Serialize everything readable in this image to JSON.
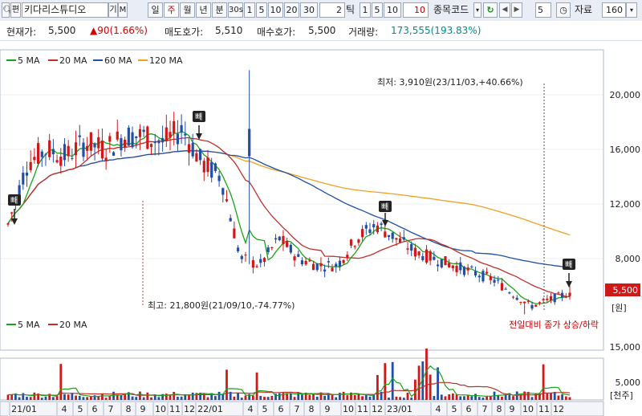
{
  "toolbar": {
    "search_icon": "magnifier-icon",
    "stock_name": "키다리스튜디오",
    "chart_type_labels": [
      "일",
      "주",
      "월",
      "년"
    ],
    "selected_period": "주",
    "seconds_label": "분",
    "sec_30": "30s",
    "minute_buttons": [
      "1",
      "5",
      "10",
      "20",
      "30"
    ],
    "tick_value": "2",
    "tick_label": "틱",
    "tick_buttons": [
      "1",
      "5",
      "10"
    ],
    "tick_red_value": "10",
    "code_label": "종목코드",
    "code_value": "5",
    "data_label": "자료",
    "data_count": "160",
    "abbr_1": "편",
    "abbr_2": "기",
    "abbr_3": "M"
  },
  "info_bar": {
    "current_price_label": "현재가:",
    "current_price": "5,500",
    "change_text": "▲90(1.66%)",
    "ask_label": "매도호가:",
    "ask_price": "5,510",
    "bid_label": "매수호가:",
    "bid_price": "5,500",
    "volume_label": "거래량:",
    "volume": "173,555(193.83%)"
  },
  "price_chart": {
    "legend": [
      {
        "label": "5 MA",
        "color": "#1aa31a"
      },
      {
        "label": "20 MA",
        "color": "#c0302a"
      },
      {
        "label": "60 MA",
        "color": "#1f4fa8"
      },
      {
        "label": "120 MA",
        "color": "#f0a020"
      }
    ],
    "annotation_low": "최저: 3,910원(23/11/03,+40.66%)",
    "annotation_high": "최고: 21,800원(21/09/10,-74.77%)",
    "y_ticks": [
      "20,000",
      "16,000",
      "12,000",
      "8,000"
    ],
    "current_price_tag": "5,500",
    "unit": "[원]",
    "marker_label": "빼"
  },
  "volume_chart": {
    "legend": [
      {
        "label": "5 MA",
        "color": "#1aa31a"
      },
      {
        "label": "20 MA",
        "color": "#c0302a"
      }
    ],
    "note": "전일대비 종가 상승/하락",
    "y_ticks": [
      "15,000",
      "5,000"
    ],
    "unit": "[천주]"
  },
  "x_axis": {
    "labels": [
      "21/01",
      "4",
      "5",
      "6",
      "7",
      "8",
      "9",
      "10",
      "11",
      "12",
      "22/01",
      "4",
      "5",
      "6",
      "7",
      "8",
      "9",
      "10",
      "11",
      "12",
      "23/01",
      "4",
      "5",
      "6",
      "7",
      "8",
      "9",
      "10",
      "11",
      "12"
    ]
  },
  "chart_data": {
    "type": "candlestick",
    "period": "weekly",
    "x": [
      "21/01",
      "21/04",
      "21/05",
      "21/06",
      "21/07",
      "21/08",
      "21/09",
      "21/10",
      "21/11",
      "21/12",
      "22/01",
      "22/04",
      "22/05",
      "22/06",
      "22/07",
      "22/08",
      "22/09",
      "22/10",
      "22/11",
      "22/12",
      "23/01",
      "23/04",
      "23/05",
      "23/06",
      "23/07",
      "23/08",
      "23/09",
      "23/10",
      "23/11",
      "23/12"
    ],
    "close_approx": [
      10500,
      15000,
      16000,
      15500,
      16500,
      16000,
      17000,
      17000,
      16500,
      17500,
      15000,
      14000,
      8000,
      7500,
      9500,
      8000,
      7500,
      7500,
      9500,
      10500,
      9500,
      8500,
      8000,
      7500,
      7000,
      6500,
      5500,
      4500,
      5000,
      5500
    ],
    "ylim": [
      3000,
      22500
    ],
    "max": {
      "value": 21800,
      "date": "21/09/10"
    },
    "min": {
      "value": 3910,
      "date": "23/11/03"
    },
    "last_price": 5500
  }
}
